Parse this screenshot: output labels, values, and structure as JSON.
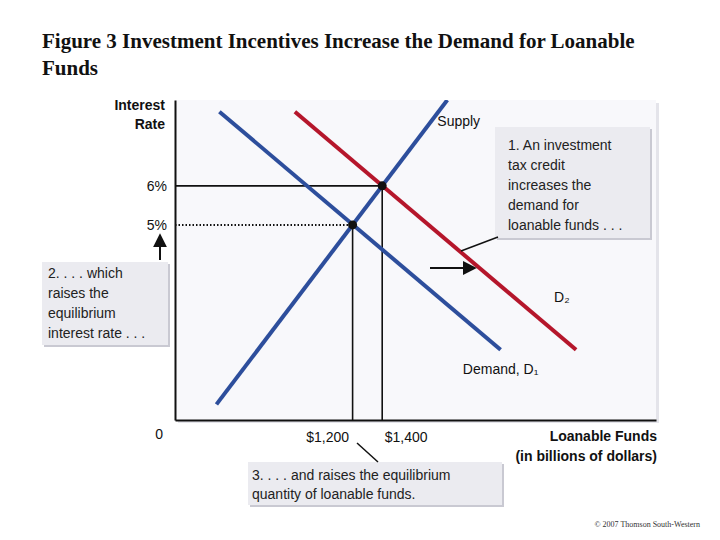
{
  "chart_data": {
    "type": "line",
    "title": "Figure 3 Investment Incentives Increase the Demand for Loanable Funds",
    "y_label": "Interest Rate",
    "x_label": "Loanable Funds (in billions of dollars)",
    "xlim": [
      0,
      3250
    ],
    "ylim": [
      0,
      8.2
    ],
    "xticks": [
      {
        "value": 1200,
        "label": "$1,200"
      },
      {
        "value": 1400,
        "label": "$1,400"
      }
    ],
    "yticks": [
      0,
      {
        "value": 5,
        "label": "5%"
      },
      {
        "value": 6,
        "label": "6%"
      }
    ],
    "grid": false,
    "series": [
      {
        "name": "Supply",
        "color": "#2d4e9c",
        "x": [
          280,
          1840
        ],
        "values": [
          0.4,
          8.2
        ]
      },
      {
        "name": "Demand, D₁",
        "color": "#2d4e9c",
        "x": [
          300,
          2200
        ],
        "values": [
          7.9,
          1.8
        ]
      },
      {
        "name": "D₂",
        "color": "#b5162b",
        "x": [
          810,
          2710
        ],
        "values": [
          7.9,
          1.8
        ]
      }
    ],
    "equilibria": {
      "x": [
        1200,
        1400
      ],
      "values": [
        5,
        6
      ]
    },
    "annotations": [
      {
        "lines": [
          "1. An investment",
          "tax credit",
          "increases the",
          "demand for",
          "loanable funds . . ."
        ]
      },
      {
        "lines": [
          "2. . . . which",
          "raises the",
          "equilibrium",
          "interest rate . . ."
        ]
      },
      {
        "lines": [
          "3. . . . and raises the equilibrium",
          "quantity of loanable funds."
        ]
      }
    ],
    "credit": "© 2007 Thomson South-Western"
  }
}
